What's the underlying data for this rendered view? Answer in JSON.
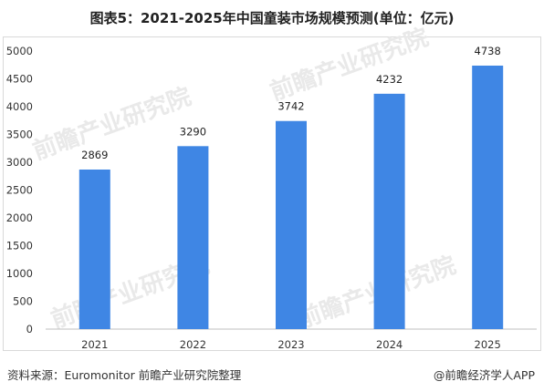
{
  "title": "图表5：2021-2025年中国童装市场规模预测(单位：亿元)",
  "source_text": "资料来源：Euromonitor 前瞻产业研究院整理",
  "brand_text": "@前瞻经济学人APP",
  "watermark_text": "前瞻产业研究院",
  "colors": {
    "bar": "#3f86e4",
    "grid": "#d9d9d9",
    "text": "#333333"
  },
  "chart_data": {
    "type": "bar",
    "categories": [
      "2021",
      "2022",
      "2023",
      "2024",
      "2025"
    ],
    "values": [
      2869,
      3290,
      3742,
      4232,
      4738
    ],
    "title": "图表5：2021-2025年中国童装市场规模预测(单位：亿元)",
    "xlabel": "",
    "ylabel": "",
    "ylim": [
      0,
      5000
    ],
    "yticks": [
      0,
      500,
      1000,
      1500,
      2000,
      2500,
      3000,
      3500,
      4000,
      4500,
      5000
    ],
    "grid": false,
    "data_labels": true
  }
}
